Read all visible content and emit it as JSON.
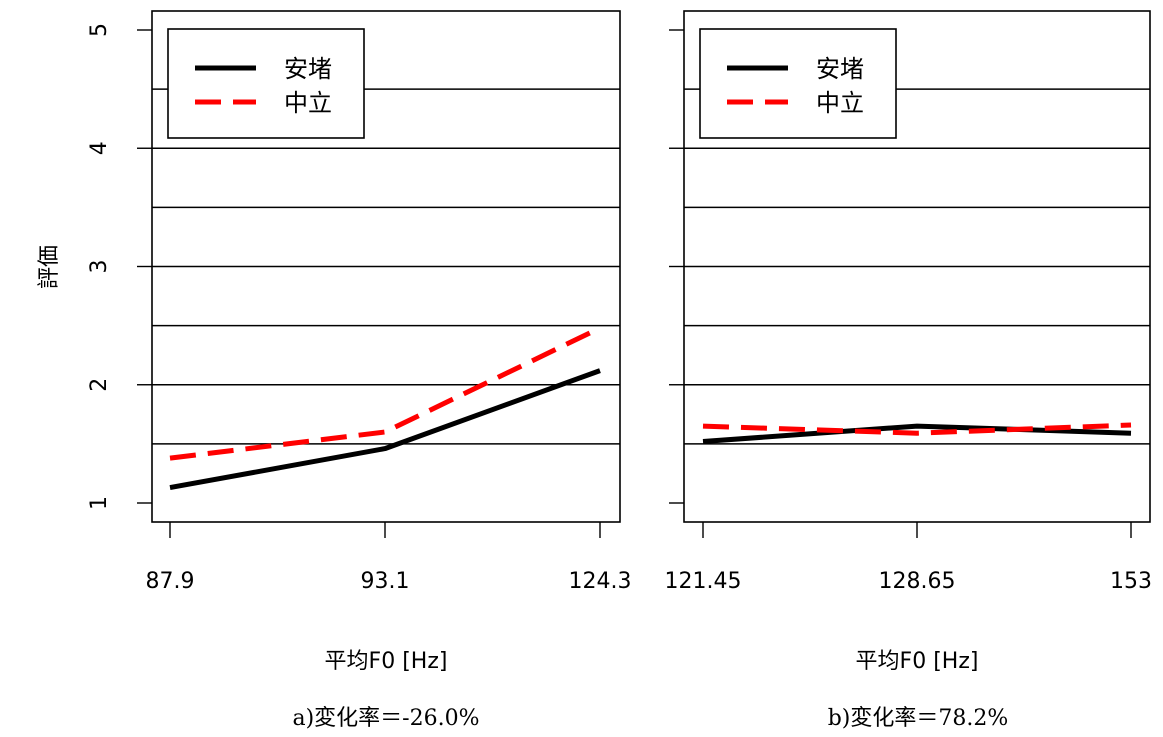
{
  "chart_data": [
    {
      "type": "line",
      "categories": [
        "87.9",
        "93.1",
        "124.3"
      ],
      "series": [
        {
          "name": "安堵",
          "values": [
            1.13,
            1.46,
            2.12
          ],
          "color": "#000000",
          "style": "solid"
        },
        {
          "name": "中立",
          "values": [
            1.38,
            1.6,
            2.48
          ],
          "color": "#ff0000",
          "style": "dashed"
        }
      ],
      "xlabel": "平均F0 [Hz]",
      "ylabel": "評価",
      "yticks": [
        "1",
        "2",
        "3",
        "4",
        "5"
      ],
      "ylim": [
        1,
        5
      ],
      "gridlines": [
        1.5,
        2,
        2.5,
        3,
        3.5,
        4,
        4.5
      ],
      "legend": "top-left",
      "caption": "a)変化率＝-26.0%"
    },
    {
      "type": "line",
      "categories": [
        "121.45",
        "128.65",
        "153"
      ],
      "series": [
        {
          "name": "安堵",
          "values": [
            1.52,
            1.65,
            1.59
          ],
          "color": "#000000",
          "style": "solid"
        },
        {
          "name": "中立",
          "values": [
            1.65,
            1.59,
            1.66
          ],
          "color": "#ff0000",
          "style": "dashed"
        }
      ],
      "xlabel": "平均F0 [Hz]",
      "ylim": [
        1,
        5
      ],
      "gridlines": [
        1.5,
        2,
        2.5,
        3,
        3.5,
        4,
        4.5
      ],
      "legend": "top-left",
      "caption": "b)変化率＝78.2%"
    }
  ]
}
